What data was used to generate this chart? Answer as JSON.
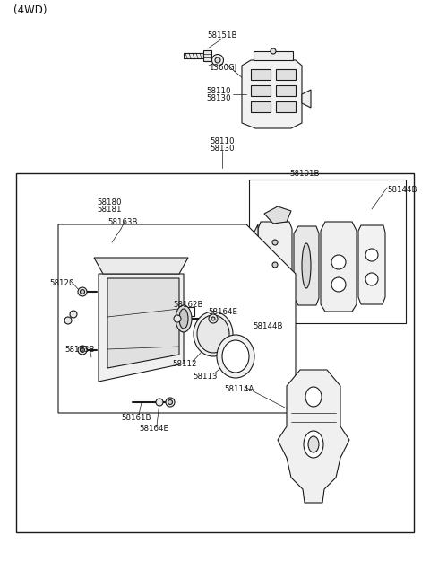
{
  "background": "#ffffff",
  "line_color": "#1a1a1a",
  "text_color": "#111111",
  "font_size": 6.2,
  "font_size_title": 8.5,
  "lw_main": 0.8,
  "lw_thin": 0.5,
  "labels": {
    "title": "(4WD)",
    "58151B": "58151B",
    "1360GJ": "1360GJ",
    "58110a": "58110",
    "58130a": "58130",
    "58110b": "58110",
    "58130b": "58130",
    "58101B": "58101B",
    "58144B_top": "58144B",
    "58144B_bot": "58144B",
    "58180": "58180",
    "58181": "58181",
    "58163B_top": "58163B",
    "58120": "58120",
    "58162B": "58162B",
    "58164E_top": "58164E",
    "58163B_bot": "58163B",
    "58112": "58112",
    "58113": "58113",
    "58114A": "58114A",
    "58161B": "58161B",
    "58164E_bot": "58164E"
  }
}
